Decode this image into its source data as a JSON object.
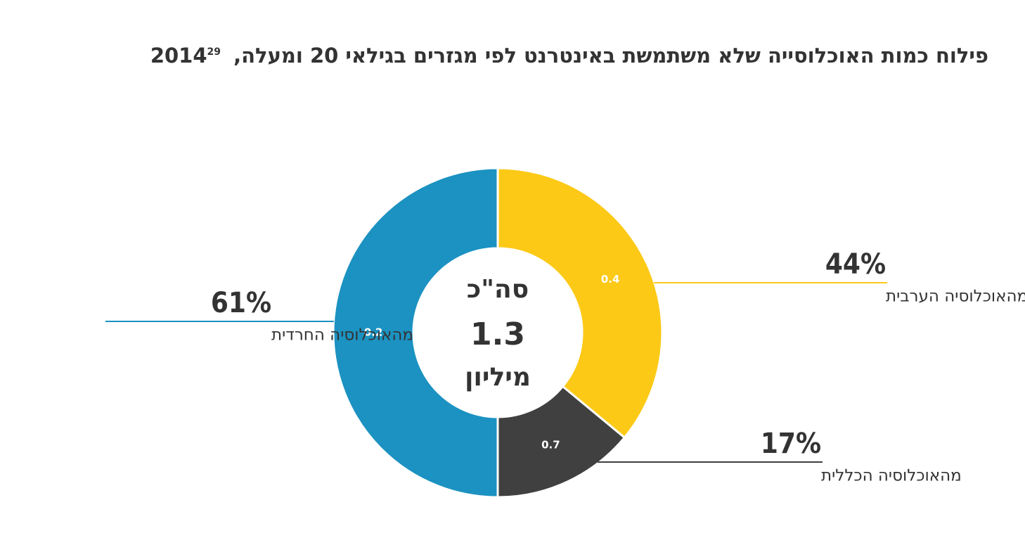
{
  "chart_data": {
    "type": "donut",
    "title": "פילוח כמות האוכלוסייה שלא משתמשת באינטרנט לפי מגזרים בגילאי 20 ומעלה, 2014",
    "footnote": "29",
    "categories": [
      "מהאוכלוסיה הערבית",
      "מהאוכלוסיה הכללית",
      "מהאוכלוסיה החרדית"
    ],
    "values": [
      36,
      14,
      50
    ],
    "colors": [
      "#fcc917",
      "#404040",
      "#1b92c1"
    ],
    "inner_labels": [
      "0.4",
      "0.7",
      "0.2"
    ],
    "callout_texts": [
      "44%",
      "17%",
      "61%"
    ],
    "center_text": [
      "סה\"כ",
      "1.3",
      "מיליון"
    ]
  }
}
